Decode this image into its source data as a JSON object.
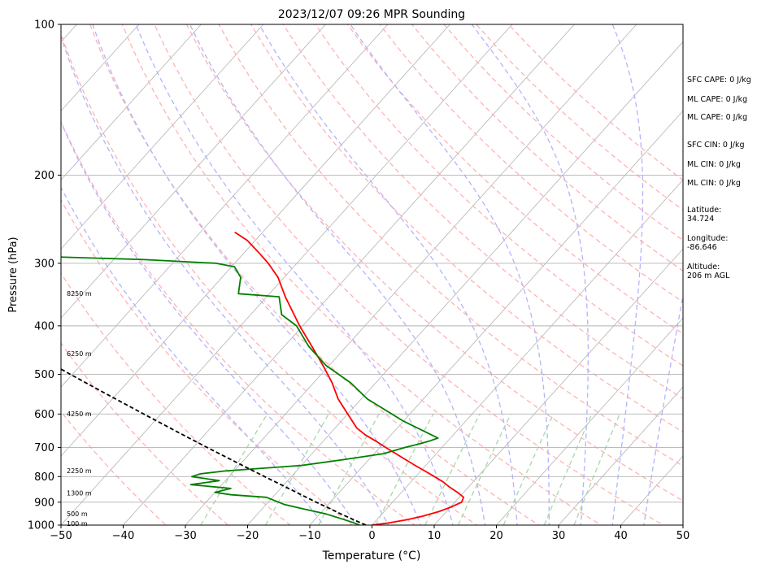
{
  "chart_data": {
    "type": "line",
    "title": "2023/12/07 09:26 MPR Sounding",
    "xlabel": "Temperature (°C)",
    "ylabel": "Pressure (hPa)",
    "xlim": [
      -50,
      50
    ],
    "ylim": [
      1000,
      100
    ],
    "yscale": "log",
    "xticks": [
      "−50",
      "−40",
      "−30",
      "−20",
      "−10",
      "0",
      "10",
      "20",
      "30",
      "40",
      "50"
    ],
    "yticks": [
      "100",
      "200",
      "300",
      "400",
      "500",
      "600",
      "700",
      "800",
      "900",
      "1000"
    ],
    "height_labels": [
      {
        "text": "100 m",
        "p": 995
      },
      {
        "text": "500 m",
        "p": 950
      },
      {
        "text": "1300 m",
        "p": 865
      },
      {
        "text": "2250 m",
        "p": 780
      },
      {
        "text": "4250 m",
        "p": 600
      },
      {
        "text": "6250 m",
        "p": 455
      },
      {
        "text": "8250 m",
        "p": 345
      }
    ],
    "series": [
      {
        "role": "temperature",
        "color": "#ff0000",
        "p": [
          1000,
          990,
          975,
          960,
          940,
          920,
          900,
          880,
          860,
          840,
          820,
          800,
          780,
          760,
          740,
          720,
          700,
          680,
          660,
          640,
          600,
          560,
          520,
          480,
          440,
          400,
          380,
          350,
          320,
          300,
          285,
          270,
          260
        ],
        "t": [
          0.0,
          2.4,
          4.9,
          6.8,
          8.8,
          10.1,
          11.1,
          10.7,
          9.0,
          7.0,
          5.2,
          3.0,
          0.7,
          -1.7,
          -4.1,
          -6.5,
          -9.0,
          -11.5,
          -14.2,
          -16.5,
          -20.0,
          -23.7,
          -27.0,
          -31.0,
          -35.5,
          -40.5,
          -43.0,
          -47.0,
          -51.0,
          -54.6,
          -57.8,
          -61.3,
          -64.5
        ]
      },
      {
        "role": "dewpoint",
        "color": "#008000",
        "p": [
          1000,
          990,
          975,
          950,
          930,
          910,
          895,
          880,
          870,
          860,
          845,
          830,
          815,
          800,
          790,
          780,
          770,
          760,
          740,
          720,
          700,
          690,
          680,
          670,
          620,
          560,
          520,
          480,
          440,
          400,
          380,
          350,
          345,
          320,
          305,
          300,
          295,
          290
        ],
        "t": [
          -2.0,
          -3.2,
          -5.3,
          -9.0,
          -13.0,
          -17.0,
          -19.0,
          -21.0,
          -27.0,
          -30.0,
          -28.0,
          -35.0,
          -31.0,
          -36.0,
          -35.0,
          -31.6,
          -26.0,
          -20.0,
          -14.0,
          -8.5,
          -6.0,
          -4.4,
          -3.0,
          -2.0,
          -10.0,
          -19.0,
          -24.0,
          -30.5,
          -36.0,
          -41.0,
          -45.0,
          -48.0,
          -55.0,
          -57.0,
          -59.5,
          -63.0,
          -75.0,
          -95.0
        ]
      },
      {
        "role": "parcel",
        "color": "#000000",
        "dashed": true,
        "p": [
          1000,
          975,
          950,
          925,
          900,
          850,
          800,
          750,
          700,
          650,
          600,
          550,
          500,
          450,
          400,
          350,
          300,
          285
        ],
        "t": [
          -1.0,
          -3.8,
          -6.6,
          -9.4,
          -12.3,
          -18.1,
          -24.3,
          -30.8,
          -37.7,
          -45.0,
          -52.8,
          -61.2,
          -70.3,
          -80.2,
          -91.1,
          -103.3,
          -117.2,
          -121.6
        ]
      }
    ],
    "dry_adiabats_K": [
      240,
      250,
      260,
      270,
      280,
      290,
      300,
      310,
      320,
      330,
      340,
      350,
      360,
      370,
      380,
      390,
      400,
      410,
      420,
      430
    ],
    "moist_adiabats_start_C": [
      -5,
      0,
      5,
      10,
      15,
      20,
      25,
      30,
      35,
      40,
      45
    ],
    "mixing_ratio_lines": [
      0.4,
      1,
      2,
      4,
      7,
      10,
      16,
      24,
      32
    ],
    "grid": true,
    "colors": {
      "isotherm": "#b3b3b3",
      "isobar": "#b3b3b3",
      "dry_adiabat": "#ffb3b3",
      "moist_adiabat": "#b3b3ff",
      "mixing_ratio": "#a8d8a8"
    },
    "annotations": [
      "SFC CAPE: 0 J/kg",
      "ML CAPE: 0 J/kg",
      "ML CAPE: 0 J/kg",
      "SFC CIN: 0 J/kg",
      "ML CIN: 0 J/kg",
      "ML CIN: 0 J/kg",
      "Latitude:\n34.724",
      "Longitude:\n-86.646",
      "Altitude:\n206 m AGL"
    ]
  }
}
